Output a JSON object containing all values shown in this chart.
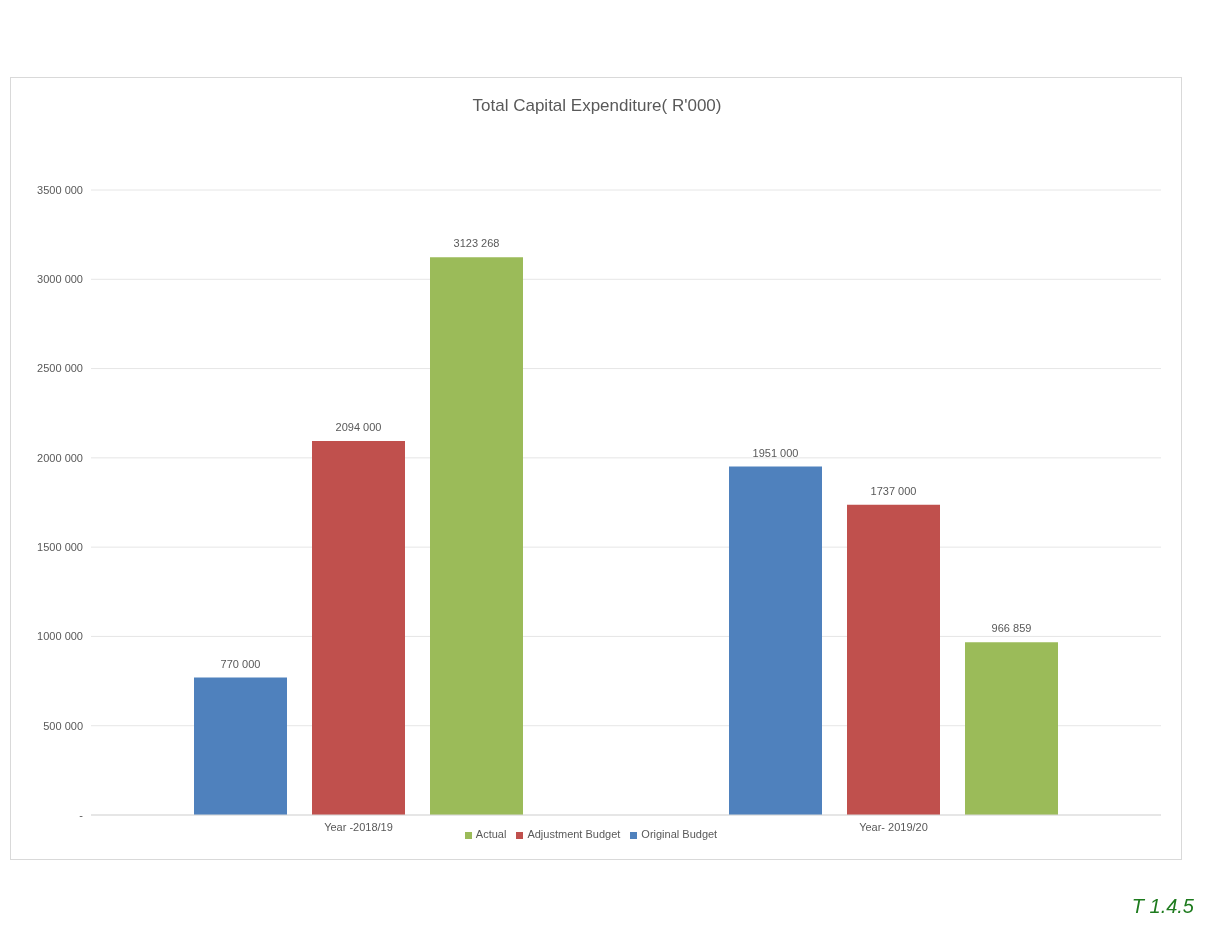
{
  "chart_data": {
    "type": "bar",
    "title": "Total Capital Expenditure( R'000)",
    "categories": [
      "Year -2018/19",
      "Year- 2019/20"
    ],
    "series": [
      {
        "name": "Original Budget",
        "color": "#4f81bd",
        "values": [
          770000,
          1951000
        ],
        "value_labels": [
          "770 000",
          "1951 000"
        ]
      },
      {
        "name": "Adjustment Budget",
        "color": "#c0504d",
        "values": [
          2094000,
          1737000
        ],
        "value_labels": [
          "2094 000",
          "1737 000"
        ]
      },
      {
        "name": "Actual",
        "color": "#9bbb59",
        "values": [
          3123268,
          966859
        ],
        "value_labels": [
          "3123 268",
          "966 859"
        ]
      }
    ],
    "ylim": [
      0,
      3500000
    ],
    "yticks": [
      {
        "value": 0,
        "label": "-"
      },
      {
        "value": 500000,
        "label": "500 000"
      },
      {
        "value": 1000000,
        "label": "1000 000"
      },
      {
        "value": 1500000,
        "label": "1500 000"
      },
      {
        "value": 2000000,
        "label": "2000 000"
      },
      {
        "value": 2500000,
        "label": "2500 000"
      },
      {
        "value": 3000000,
        "label": "3000 000"
      },
      {
        "value": 3500000,
        "label": "3500 000"
      }
    ],
    "grid": "y",
    "legend": "bottom",
    "annotations": [
      "T 1.4.5"
    ]
  }
}
